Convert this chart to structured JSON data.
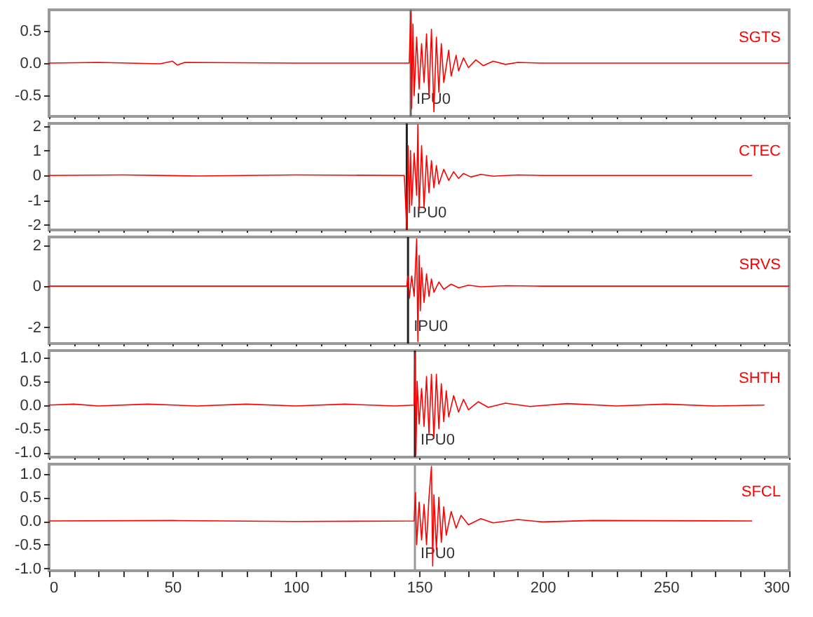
{
  "chart_data": [
    {
      "type": "line",
      "x": [
        0,
        20,
        45,
        50,
        52,
        55,
        100,
        146,
        146.6,
        147,
        147.5,
        148,
        149,
        150,
        151,
        152,
        153,
        154,
        155,
        156,
        157,
        158,
        159,
        160,
        162,
        163,
        165,
        166,
        168,
        170,
        173,
        176,
        180,
        185,
        190,
        200,
        300
      ],
      "series": [
        {
          "name": "SGTS",
          "color": "#ff0000",
          "values": [
            0,
            0.01,
            -0.01,
            0.03,
            -0.03,
            0.01,
            0,
            0,
            0.78,
            -0.7,
            0.6,
            -0.5,
            0.4,
            -0.4,
            0.3,
            -0.3,
            0.45,
            -0.5,
            0.52,
            -0.75,
            0.4,
            -0.45,
            0.3,
            -0.3,
            0.2,
            -0.2,
            0.12,
            -0.12,
            0.08,
            -0.07,
            0.05,
            -0.04,
            0.03,
            -0.02,
            0.01,
            0,
            0
          ]
        }
      ],
      "xlim": [
        0,
        300
      ],
      "xticks": [
        0,
        {
          "value": 10,
          "label": null
        },
        {
          "value": 20,
          "label": null
        },
        {
          "value": 30,
          "label": null
        },
        {
          "value": 40,
          "label": null
        },
        50,
        {
          "value": 60,
          "label": null
        },
        {
          "value": 70,
          "label": null
        },
        {
          "value": 80,
          "label": null
        },
        {
          "value": 90,
          "label": null
        },
        100,
        {
          "value": 110,
          "label": null
        },
        {
          "value": 120,
          "label": null
        },
        {
          "value": 130,
          "label": null
        },
        {
          "value": 140,
          "label": null
        },
        150,
        {
          "value": 160,
          "label": null
        },
        {
          "value": 170,
          "label": null
        },
        {
          "value": 180,
          "label": null
        },
        {
          "value": 190,
          "label": null
        },
        200,
        {
          "value": 210,
          "label": null
        },
        {
          "value": 220,
          "label": null
        },
        {
          "value": 230,
          "label": null
        },
        {
          "value": 240,
          "label": null
        },
        250,
        {
          "value": 260,
          "label": null
        },
        {
          "value": 270,
          "label": null
        },
        {
          "value": 280,
          "label": null
        },
        {
          "value": 290,
          "label": null
        },
        300
      ],
      "ylim": [
        -0.82,
        0.82
      ],
      "yticks": [
        -0.5,
        {
          "value": 0,
          "label": "0.0"
        },
        0.5
      ],
      "ref_lines": [
        {
          "axis": "x",
          "value": 146.6,
          "label": "IPU0",
          "color": "#666666"
        }
      ],
      "tick_labels": "y"
    },
    {
      "type": "line",
      "x": [
        0,
        30,
        60,
        100,
        144,
        145,
        145.5,
        146,
        146.5,
        147,
        148,
        149,
        149.5,
        150,
        151,
        152,
        153,
        154,
        155,
        156,
        157,
        158,
        160,
        162,
        164,
        166,
        168,
        171,
        175,
        180,
        190,
        200,
        285
      ],
      "series": [
        {
          "name": "CTEC",
          "color": "#ff0000",
          "values": [
            0,
            0.02,
            -0.02,
            0.02,
            0,
            -2.15,
            1.2,
            -1.5,
            1.0,
            -1.2,
            0.9,
            -0.8,
            2.05,
            -1.4,
            1.2,
            -1.3,
            0.8,
            -0.7,
            0.6,
            -0.5,
            0.4,
            -0.35,
            0.25,
            -0.2,
            0.15,
            -0.12,
            0.08,
            -0.06,
            0.04,
            -0.03,
            0.02,
            0,
            0
          ]
        }
      ],
      "xlim": [
        0,
        300
      ],
      "xticks": [
        0,
        {
          "value": 10,
          "label": null
        },
        {
          "value": 20,
          "label": null
        },
        {
          "value": 30,
          "label": null
        },
        {
          "value": 40,
          "label": null
        },
        50,
        {
          "value": 60,
          "label": null
        },
        {
          "value": 70,
          "label": null
        },
        {
          "value": 80,
          "label": null
        },
        {
          "value": 90,
          "label": null
        },
        100,
        {
          "value": 110,
          "label": null
        },
        {
          "value": 120,
          "label": null
        },
        {
          "value": 130,
          "label": null
        },
        {
          "value": 140,
          "label": null
        },
        150,
        {
          "value": 160,
          "label": null
        },
        {
          "value": 170,
          "label": null
        },
        {
          "value": 180,
          "label": null
        },
        {
          "value": 190,
          "label": null
        },
        200,
        {
          "value": 210,
          "label": null
        },
        {
          "value": 220,
          "label": null
        },
        {
          "value": 230,
          "label": null
        },
        {
          "value": 240,
          "label": null
        },
        250,
        {
          "value": 260,
          "label": null
        },
        {
          "value": 270,
          "label": null
        },
        {
          "value": 280,
          "label": null
        },
        {
          "value": 290,
          "label": null
        },
        300
      ],
      "ylim": [
        -2.2,
        2.1
      ],
      "yticks": [
        -2,
        -1,
        0,
        1,
        2
      ],
      "ref_lines": [
        {
          "axis": "x",
          "value": 145,
          "label": "IPU0",
          "color": "#222222"
        }
      ],
      "tick_labels": "y"
    },
    {
      "type": "line",
      "x": [
        0,
        145,
        145.5,
        146,
        147,
        148,
        149,
        149.5,
        150,
        150.5,
        151,
        152,
        153,
        154,
        155,
        156,
        158,
        160,
        163,
        166,
        170,
        175,
        185,
        200,
        300
      ],
      "series": [
        {
          "name": "SRVS",
          "color": "#ff0000",
          "values": [
            0,
            0,
            0.5,
            -0.6,
            0.5,
            -0.5,
            2.3,
            -2.7,
            1.5,
            -1.2,
            0.9,
            -0.8,
            0.6,
            -0.5,
            0.35,
            -0.3,
            0.2,
            -0.15,
            0.1,
            -0.08,
            0.05,
            -0.03,
            0.02,
            0,
            0
          ]
        }
      ],
      "xlim": [
        0,
        300
      ],
      "xticks": [
        0,
        {
          "value": 10,
          "label": null
        },
        {
          "value": 20,
          "label": null
        },
        {
          "value": 30,
          "label": null
        },
        {
          "value": 40,
          "label": null
        },
        50,
        {
          "value": 60,
          "label": null
        },
        {
          "value": 70,
          "label": null
        },
        {
          "value": 80,
          "label": null
        },
        {
          "value": 90,
          "label": null
        },
        100,
        {
          "value": 110,
          "label": null
        },
        {
          "value": 120,
          "label": null
        },
        {
          "value": 130,
          "label": null
        },
        {
          "value": 140,
          "label": null
        },
        150,
        {
          "value": 160,
          "label": null
        },
        {
          "value": 170,
          "label": null
        },
        {
          "value": 180,
          "label": null
        },
        {
          "value": 190,
          "label": null
        },
        200,
        {
          "value": 210,
          "label": null
        },
        {
          "value": 220,
          "label": null
        },
        {
          "value": 230,
          "label": null
        },
        {
          "value": 240,
          "label": null
        },
        250,
        {
          "value": 260,
          "label": null
        },
        {
          "value": 270,
          "label": null
        },
        {
          "value": 280,
          "label": null
        },
        {
          "value": 290,
          "label": null
        },
        300
      ],
      "ylim": [
        -2.8,
        2.4
      ],
      "yticks": [
        -2,
        0,
        2
      ],
      "ref_lines": [
        {
          "axis": "x",
          "value": 145.5,
          "label": "IPU0",
          "color": "#222222"
        }
      ],
      "tick_labels": "y"
    },
    {
      "type": "line",
      "x": [
        0,
        10,
        20,
        40,
        60,
        80,
        100,
        120,
        140,
        148,
        148.3,
        148.7,
        149.2,
        150,
        151,
        152,
        153,
        154,
        155,
        156,
        157,
        158,
        159,
        160,
        161,
        162,
        164,
        166,
        168,
        170,
        174,
        178,
        185,
        195,
        210,
        230,
        250,
        270,
        290
      ],
      "series": [
        {
          "name": "SHTH",
          "color": "#ff0000",
          "values": [
            0,
            0.02,
            -0.02,
            0.02,
            -0.02,
            0.02,
            -0.02,
            0.02,
            -0.02,
            0,
            1.1,
            -1.05,
            0.5,
            -0.4,
            0.35,
            -0.45,
            0.6,
            -0.6,
            0.65,
            -0.7,
            0.65,
            -0.5,
            0.45,
            -0.35,
            0.3,
            -0.25,
            0.2,
            -0.15,
            0.12,
            -0.1,
            0.07,
            -0.05,
            0.04,
            -0.03,
            0.03,
            -0.02,
            0.02,
            -0.02,
            0
          ]
        }
      ],
      "xlim": [
        0,
        300
      ],
      "xticks": [
        0,
        {
          "value": 10,
          "label": null
        },
        {
          "value": 20,
          "label": null
        },
        {
          "value": 30,
          "label": null
        },
        {
          "value": 40,
          "label": null
        },
        50,
        {
          "value": 60,
          "label": null
        },
        {
          "value": 70,
          "label": null
        },
        {
          "value": 80,
          "label": null
        },
        {
          "value": 90,
          "label": null
        },
        100,
        {
          "value": 110,
          "label": null
        },
        {
          "value": 120,
          "label": null
        },
        {
          "value": 130,
          "label": null
        },
        {
          "value": 140,
          "label": null
        },
        150,
        {
          "value": 160,
          "label": null
        },
        {
          "value": 170,
          "label": null
        },
        {
          "value": 180,
          "label": null
        },
        {
          "value": 190,
          "label": null
        },
        200,
        {
          "value": 210,
          "label": null
        },
        {
          "value": 220,
          "label": null
        },
        {
          "value": 230,
          "label": null
        },
        {
          "value": 240,
          "label": null
        },
        250,
        {
          "value": 260,
          "label": null
        },
        {
          "value": 270,
          "label": null
        },
        {
          "value": 280,
          "label": null
        },
        {
          "value": 290,
          "label": null
        },
        300
      ],
      "ylim": [
        -1.1,
        1.15
      ],
      "yticks": [
        {
          "value": -1,
          "label": "-1.0"
        },
        -0.5,
        {
          "value": 0,
          "label": "0.0"
        },
        0.5,
        {
          "value": 1,
          "label": "1.0"
        }
      ],
      "ref_lines": [
        {
          "axis": "x",
          "value": 148.3,
          "label": "IPU0",
          "color": "#222222"
        }
      ],
      "tick_labels": "y"
    },
    {
      "type": "line",
      "x": [
        0,
        50,
        100,
        148,
        148.5,
        149,
        150,
        151,
        152,
        153,
        154,
        155,
        155.5,
        156,
        157,
        158,
        159,
        160,
        161,
        163,
        165,
        167,
        170,
        175,
        180,
        190,
        200,
        220,
        285
      ],
      "series": [
        {
          "name": "SFCL",
          "color": "#ff0000",
          "values": [
            0,
            0.01,
            -0.01,
            0,
            0.6,
            -0.5,
            0.4,
            -0.4,
            0.35,
            -0.5,
            0.5,
            1.15,
            -0.95,
            0.55,
            -0.6,
            0.5,
            -0.45,
            0.3,
            -0.3,
            0.2,
            -0.15,
            0.12,
            -0.08,
            0.05,
            -0.04,
            0.03,
            -0.02,
            0.01,
            0
          ]
        }
      ],
      "xlim": [
        0,
        300
      ],
      "xticks": [
        0,
        {
          "value": 10,
          "label": null
        },
        {
          "value": 20,
          "label": null
        },
        {
          "value": 30,
          "label": null
        },
        {
          "value": 40,
          "label": null
        },
        50,
        {
          "value": 60,
          "label": null
        },
        {
          "value": 70,
          "label": null
        },
        {
          "value": 80,
          "label": null
        },
        {
          "value": 90,
          "label": null
        },
        100,
        {
          "value": 110,
          "label": null
        },
        {
          "value": 120,
          "label": null
        },
        {
          "value": 130,
          "label": null
        },
        {
          "value": 140,
          "label": null
        },
        150,
        {
          "value": 160,
          "label": null
        },
        {
          "value": 170,
          "label": null
        },
        {
          "value": 180,
          "label": null
        },
        {
          "value": 190,
          "label": null
        },
        200,
        {
          "value": 210,
          "label": null
        },
        {
          "value": 220,
          "label": null
        },
        {
          "value": 230,
          "label": null
        },
        {
          "value": 240,
          "label": null
        },
        250,
        {
          "value": 260,
          "label": null
        },
        {
          "value": 270,
          "label": null
        },
        {
          "value": 280,
          "label": null
        },
        {
          "value": 290,
          "label": null
        },
        300
      ],
      "ylim": [
        -1.05,
        1.2
      ],
      "yticks": [
        {
          "value": -1,
          "label": "-1.0"
        },
        -0.5,
        {
          "value": 0,
          "label": "0.0"
        },
        0.5,
        {
          "value": 1,
          "label": "1.0"
        }
      ],
      "ref_lines": [
        {
          "axis": "x",
          "value": 148.3,
          "label": "IPU0",
          "color": "#999999"
        }
      ]
    }
  ]
}
